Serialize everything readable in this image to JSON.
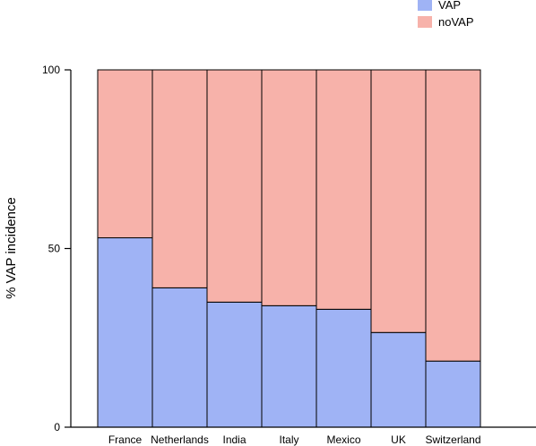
{
  "chart_data": {
    "type": "bar",
    "stacked": true,
    "categories": [
      "France",
      "Netherlands",
      "India",
      "Italy",
      "Mexico",
      "UK",
      "Switzerland"
    ],
    "series": [
      {
        "name": "VAP",
        "values": [
          53,
          39,
          35,
          34,
          33,
          26.5,
          18.5
        ],
        "color": "#9fb3f5"
      },
      {
        "name": "noVAP",
        "values": [
          47,
          61,
          65,
          66,
          67,
          73.5,
          81.5
        ],
        "color": "#f7b2aa"
      }
    ],
    "xlabel": "",
    "ylabel": "% VAP incidence",
    "ylim": [
      0,
      100
    ],
    "yticks": [
      "0",
      "50",
      "100"
    ],
    "legend_position": "top-right",
    "grid": false
  }
}
